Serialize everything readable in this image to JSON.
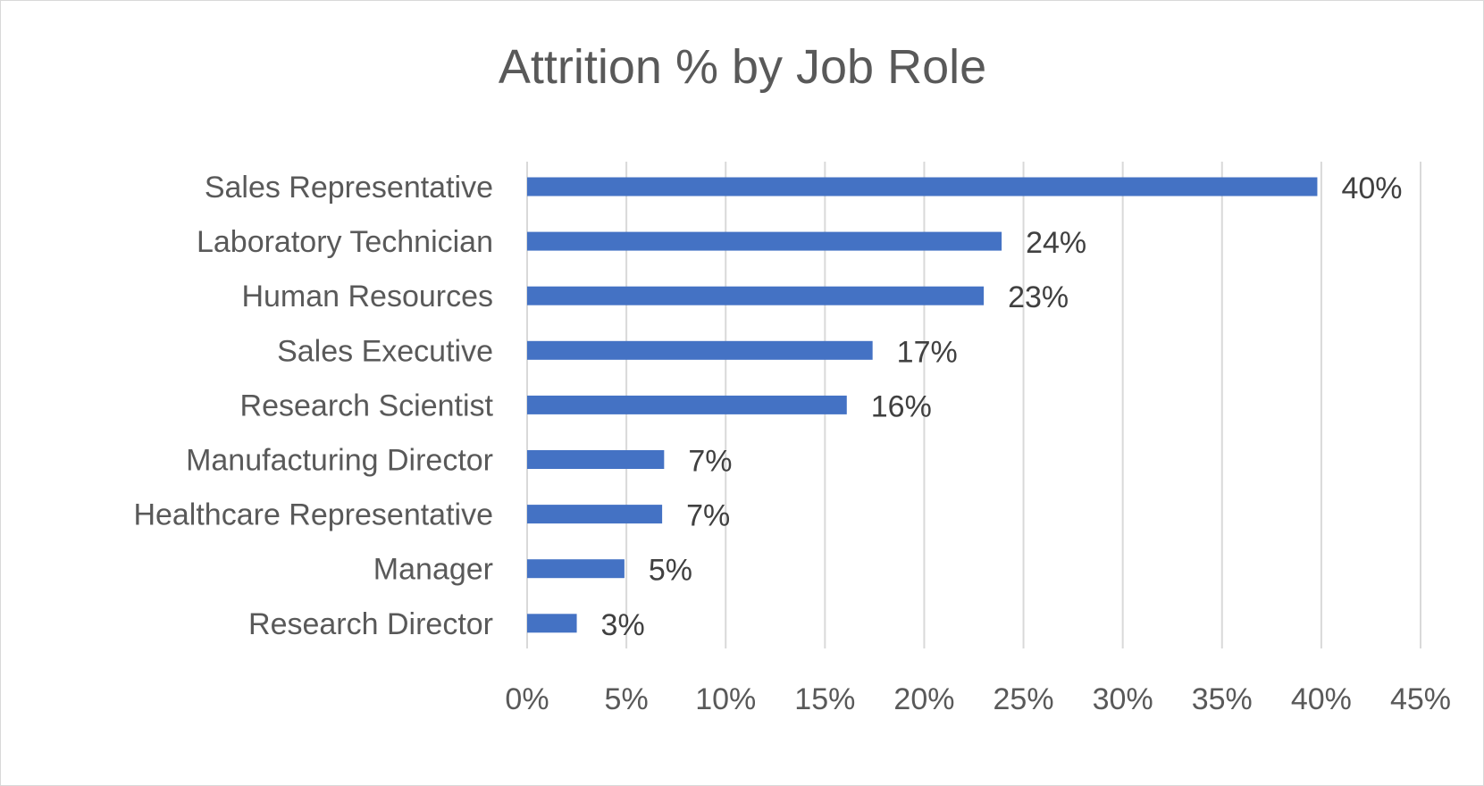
{
  "chart_data": {
    "type": "bar",
    "orientation": "horizontal",
    "title": "Attrition % by Job Role",
    "xlabel": "",
    "ylabel": "",
    "categories": [
      "Sales Representative",
      "Laboratory Technician",
      "Human Resources",
      "Sales Executive",
      "Research Scientist",
      "Manufacturing Director",
      "Healthcare Representative",
      "Manager",
      "Research Director"
    ],
    "values": [
      39.8,
      23.9,
      23.0,
      17.4,
      16.1,
      6.9,
      6.8,
      4.9,
      2.5
    ],
    "data_labels": [
      "40%",
      "24%",
      "23%",
      "17%",
      "16%",
      "7%",
      "7%",
      "5%",
      "3%"
    ],
    "xlim": [
      0,
      45
    ],
    "x_ticks": [
      0,
      5,
      10,
      15,
      20,
      25,
      30,
      35,
      40,
      45
    ],
    "x_tick_labels": [
      "0%",
      "5%",
      "10%",
      "15%",
      "20%",
      "25%",
      "30%",
      "35%",
      "40%",
      "45%"
    ],
    "grid": "vertical",
    "legend": "none",
    "bar_color": "#4472C4",
    "grid_color": "#d9d9d9"
  }
}
